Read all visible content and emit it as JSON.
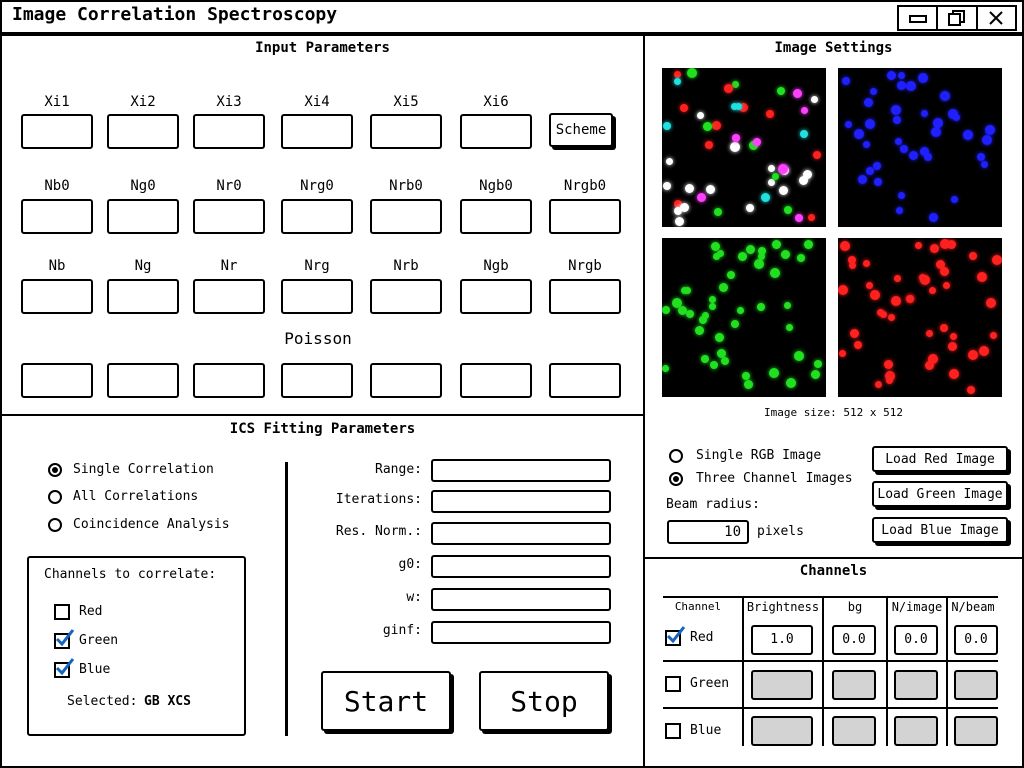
{
  "window": {
    "title": "Image Correlation Spectroscopy"
  },
  "input": {
    "title": "Input Parameters",
    "xi_labels": [
      "Xi1",
      "Xi2",
      "Xi3",
      "Xi4",
      "Xi5",
      "Xi6"
    ],
    "scheme_label": "Scheme",
    "n0_labels": [
      "Nb0",
      "Ng0",
      "Nr0",
      "Nrg0",
      "Nrb0",
      "Ngb0",
      "Nrgb0"
    ],
    "n_labels": [
      "Nb",
      "Ng",
      "Nr",
      "Nrg",
      "Nrb",
      "Ngb",
      "Nrgb"
    ],
    "poisson_label": "Poisson"
  },
  "fitting": {
    "title": "ICS Fitting Parameters",
    "modes": [
      "Single Correlation",
      "All Correlations",
      "Coincidence Analysis"
    ],
    "channels_title": "Channels to correlate:",
    "channels": [
      "Red",
      "Green",
      "Blue"
    ],
    "selected_label": "Selected:",
    "selected_value": "GB XCS",
    "params": [
      "Range:",
      "Iterations:",
      "Res. Norm.:",
      "g0:",
      "w:",
      "ginf:"
    ],
    "start_label": "Start",
    "stop_label": "Stop"
  },
  "image_settings": {
    "title": "Image Settings",
    "image_size": "Image size: 512 x 512",
    "options": [
      "Single RGB Image",
      "Three Channel Images"
    ],
    "beam_radius_label": "Beam radius:",
    "beam_radius_value": "10",
    "beam_radius_unit": "pixels",
    "load_buttons": [
      "Load Red Image",
      "Load Green Image",
      "Load Blue Image"
    ]
  },
  "channels": {
    "title": "Channels",
    "headers": [
      "Channel",
      "Brightness",
      "bg",
      "N/image",
      "N/beam"
    ],
    "rows": [
      {
        "name": "Red",
        "checked": true,
        "values": [
          "1.0",
          "0.0",
          "0.0",
          "0.0"
        ]
      },
      {
        "name": "Green",
        "checked": false,
        "values": [
          "",
          "",
          "",
          ""
        ]
      },
      {
        "name": "Blue",
        "checked": false,
        "values": [
          "",
          "",
          "",
          ""
        ]
      }
    ]
  },
  "colors": {
    "check": "#1565c0",
    "red": "#ff2020",
    "green": "#20e020",
    "blue": "#2020ff",
    "white": "#ffffff"
  }
}
